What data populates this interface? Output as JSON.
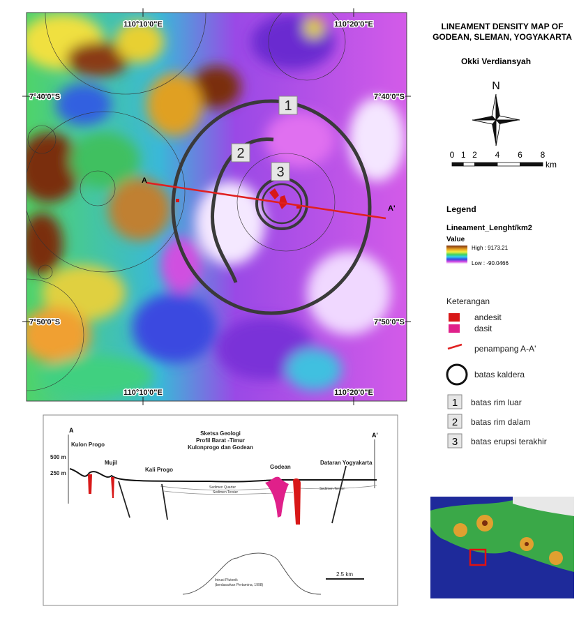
{
  "title_lines": [
    "LINEAMENT DENSITY MAP OF",
    "GODEAN, SLEMAN, YOGYAKARTA"
  ],
  "author": "Okki Verdiansyah",
  "north": "N",
  "scale_bar": {
    "ticks": [
      0,
      1,
      2,
      4,
      6,
      8
    ],
    "unit": "km"
  },
  "map": {
    "grid_labels": {
      "top": [
        "110°10'0\"E",
        "110°20'0\"E"
      ],
      "bottom": [
        "110°10'0\"E",
        "110°20'0\"E"
      ],
      "left": [
        "7°40'0\"S",
        "7°50'0\"S"
      ],
      "right": [
        "7°40'0\"S",
        "7°50'0\"S"
      ]
    },
    "ring_labels": [
      "1",
      "2",
      "3"
    ],
    "section_ends": [
      "A",
      "A'"
    ]
  },
  "legend": {
    "title": "Legend",
    "layer": "Lineament_Lenght/km2",
    "field": "Value",
    "high": "High : 9173.21",
    "low": "Low : -90.0466"
  },
  "keterangan": {
    "title": "Keterangan",
    "items": [
      "andesit",
      "dasit",
      "penampang A-A'",
      "batas kaldera"
    ],
    "rims": [
      {
        "number": "1",
        "label": "batas rim luar"
      },
      {
        "number": "2",
        "label": "batas rim dalam"
      },
      {
        "number": "3",
        "label": "batas erupsi terakhir"
      }
    ]
  },
  "cross_section": {
    "ends": [
      "A",
      "A'"
    ],
    "title_lines": [
      "Sketsa Geologi",
      "Profil Barat -Timur",
      "Kulonprogo dan Godean"
    ],
    "elevations": [
      "500 m",
      "250 m"
    ],
    "places": [
      "Kulon Progo",
      "Mujil",
      "Kali Progo",
      "Godean",
      "Dataran Yogyakarta"
    ],
    "units": [
      "Sedimen Quarter",
      "Sedimen Tersier",
      "Sedimen Tersier"
    ],
    "intrusion": [
      "Intrusi Plutonik",
      "(berdasarkan Pertamina, 1998)"
    ],
    "scale": "2.5 km"
  }
}
